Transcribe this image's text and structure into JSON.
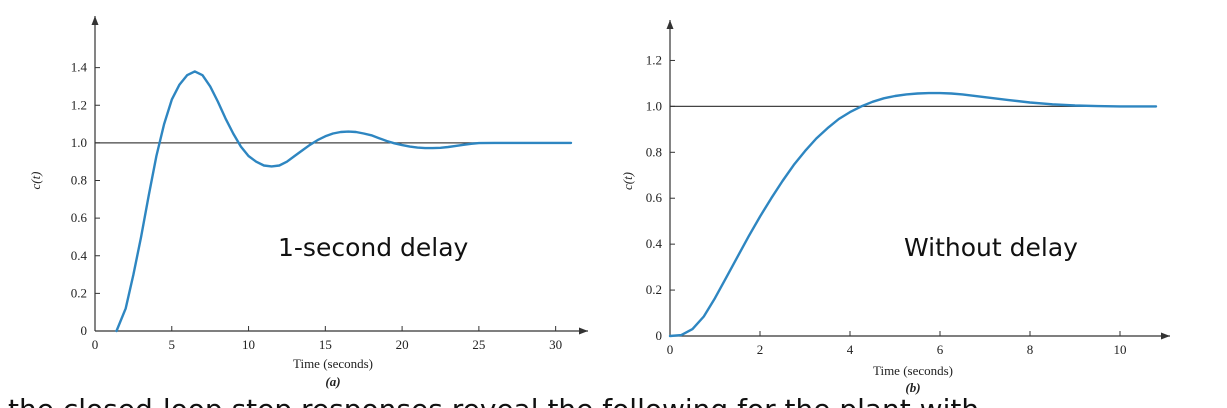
{
  "chart_data": [
    {
      "type": "line",
      "id": "a",
      "annotation": "1-second delay",
      "sublabel": "(a)",
      "xlabel": "Time (seconds)",
      "ylabel": "c(t)",
      "xlim": [
        0,
        31
      ],
      "ylim": [
        0,
        1.6
      ],
      "xticks": [
        0,
        5,
        10,
        15,
        20,
        25,
        30
      ],
      "yticks": [
        0,
        0.2,
        0.4,
        0.6,
        0.8,
        1.0,
        1.2,
        1.4
      ],
      "ytick_labels": [
        "0",
        "0.2",
        "0.4",
        "0.6",
        "0.8",
        "1.0",
        "1.2",
        "1.4"
      ],
      "reference_line": 1.0,
      "series": [
        {
          "x": [
            1.4,
            2.0,
            2.5,
            3.0,
            3.5,
            4.0,
            4.5,
            5.0,
            5.5,
            6.0,
            6.5,
            7.0,
            7.5,
            8.0,
            8.5,
            9.0,
            9.5,
            10.0,
            10.5,
            11.0,
            11.5,
            12.0,
            12.5,
            13.0,
            13.5,
            14.0,
            14.5,
            15.0,
            15.5,
            16.0,
            16.5,
            17.0,
            17.5,
            18.0,
            18.5,
            19.0,
            19.5,
            20.0,
            20.5,
            21.0,
            21.5,
            22.0,
            22.5,
            23.0,
            23.5,
            24.0,
            24.5,
            25.0,
            26.0,
            27.0,
            28.0,
            29.0,
            30.0,
            31.0
          ],
          "y": [
            0.0,
            0.12,
            0.3,
            0.5,
            0.72,
            0.93,
            1.1,
            1.23,
            1.31,
            1.36,
            1.38,
            1.36,
            1.3,
            1.22,
            1.13,
            1.05,
            0.98,
            0.93,
            0.9,
            0.88,
            0.875,
            0.88,
            0.9,
            0.93,
            0.96,
            0.99,
            1.015,
            1.035,
            1.05,
            1.058,
            1.06,
            1.058,
            1.05,
            1.04,
            1.025,
            1.01,
            0.998,
            0.988,
            0.98,
            0.975,
            0.972,
            0.972,
            0.974,
            0.978,
            0.984,
            0.99,
            0.995,
            0.999,
            1.0,
            1.0,
            1.0,
            1.0,
            1.0,
            1.0
          ],
          "color": "#2e86c1"
        }
      ]
    },
    {
      "type": "line",
      "id": "b",
      "annotation": "Without delay",
      "sublabel": "(b)",
      "xlabel": "Time (seconds)",
      "ylabel": "c(t)",
      "xlim": [
        0,
        10.8
      ],
      "ylim": [
        0,
        1.35
      ],
      "xticks": [
        0,
        2,
        4,
        6,
        8,
        10
      ],
      "yticks": [
        0,
        0.2,
        0.4,
        0.6,
        0.8,
        1.0,
        1.2
      ],
      "ytick_labels": [
        "0",
        "0.2",
        "0.4",
        "0.6",
        "0.8",
        "1.0",
        "1.2"
      ],
      "reference_line": 1.0,
      "series": [
        {
          "x": [
            0.0,
            0.25,
            0.5,
            0.75,
            1.0,
            1.25,
            1.5,
            1.75,
            2.0,
            2.25,
            2.5,
            2.75,
            3.0,
            3.25,
            3.5,
            3.75,
            4.0,
            4.25,
            4.5,
            4.75,
            5.0,
            5.25,
            5.5,
            5.75,
            6.0,
            6.25,
            6.5,
            6.75,
            7.0,
            7.5,
            8.0,
            8.5,
            9.0,
            9.5,
            10.0,
            10.5,
            10.8
          ],
          "y": [
            0.0,
            0.004,
            0.03,
            0.085,
            0.165,
            0.255,
            0.345,
            0.435,
            0.52,
            0.6,
            0.675,
            0.745,
            0.805,
            0.86,
            0.905,
            0.945,
            0.975,
            1.0,
            1.02,
            1.035,
            1.045,
            1.052,
            1.056,
            1.058,
            1.058,
            1.056,
            1.052,
            1.046,
            1.04,
            1.028,
            1.017,
            1.009,
            1.004,
            1.001,
            1.0,
            1.0,
            1.0
          ],
          "color": "#2e86c1"
        }
      ]
    }
  ],
  "caption_fragment": "the closed-loop step responses reveal the following for the plant with"
}
